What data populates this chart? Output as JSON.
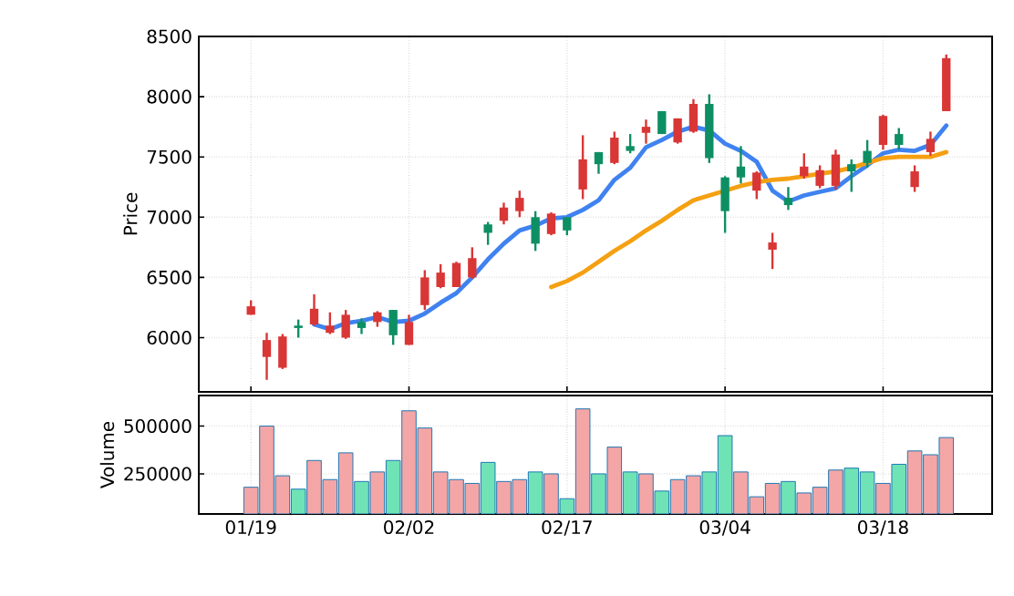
{
  "chart_data": [
    {
      "type": "candlestick",
      "ylabel": "Price",
      "categories": [
        null,
        null,
        null,
        null,
        null,
        null,
        null,
        null,
        null,
        null,
        null,
        null,
        null,
        null,
        null,
        null,
        null,
        null,
        null,
        null,
        null,
        null,
        null,
        null,
        null,
        null,
        null,
        null,
        null,
        null,
        null,
        null,
        null,
        null,
        null,
        null,
        null,
        null,
        null,
        null,
        null,
        null,
        null,
        null,
        null
      ],
      "ohlc": [
        [
          6190,
          6310,
          6190,
          6260
        ],
        [
          5840,
          6040,
          5650,
          5980
        ],
        [
          5750,
          6030,
          5740,
          6010
        ],
        [
          6100,
          6150,
          6000,
          6080
        ],
        [
          6110,
          6360,
          6100,
          6240
        ],
        [
          6040,
          6210,
          6030,
          6100
        ],
        [
          6000,
          6230,
          5990,
          6190
        ],
        [
          6130,
          6160,
          6030,
          6080
        ],
        [
          6130,
          6220,
          6090,
          6210
        ],
        [
          6230,
          6230,
          5940,
          6020
        ],
        [
          5940,
          6190,
          5940,
          6130
        ],
        [
          6270,
          6560,
          6230,
          6500
        ],
        [
          6420,
          6610,
          6410,
          6540
        ],
        [
          6420,
          6630,
          6420,
          6620
        ],
        [
          6500,
          6750,
          6490,
          6660
        ],
        [
          6940,
          6960,
          6770,
          6870
        ],
        [
          6970,
          7120,
          6940,
          7080
        ],
        [
          7050,
          7220,
          7000,
          7160
        ],
        [
          7000,
          7050,
          6720,
          6780
        ],
        [
          6860,
          7040,
          6850,
          7030
        ],
        [
          7000,
          7000,
          6850,
          6890
        ],
        [
          7230,
          7680,
          7150,
          7480
        ],
        [
          7540,
          7540,
          7360,
          7440
        ],
        [
          7450,
          7710,
          7440,
          7660
        ],
        [
          7590,
          7690,
          7530,
          7550
        ],
        [
          7700,
          7810,
          7610,
          7750
        ],
        [
          7880,
          7880,
          7690,
          7690
        ],
        [
          7620,
          7820,
          7610,
          7820
        ],
        [
          7710,
          7980,
          7700,
          7940
        ],
        [
          7940,
          8020,
          7450,
          7490
        ],
        [
          7330,
          7340,
          6870,
          7050
        ],
        [
          7420,
          7590,
          7280,
          7330
        ],
        [
          7220,
          7380,
          7150,
          7370
        ],
        [
          6730,
          6870,
          6570,
          6790
        ],
        [
          7160,
          7250,
          7060,
          7100
        ],
        [
          7340,
          7530,
          7320,
          7420
        ],
        [
          7260,
          7430,
          7240,
          7390
        ],
        [
          7260,
          7560,
          7230,
          7520
        ],
        [
          7440,
          7480,
          7210,
          7380
        ],
        [
          7550,
          7640,
          7410,
          7450
        ],
        [
          7600,
          7850,
          7560,
          7840
        ],
        [
          7690,
          7740,
          7560,
          7600
        ],
        [
          7250,
          7430,
          7210,
          7380
        ],
        [
          7540,
          7710,
          7510,
          7650
        ],
        [
          7880,
          8350,
          7880,
          8320
        ]
      ],
      "colors": [
        "#d93636",
        "#d93636",
        "#d93636",
        "#0e8f63",
        "#d93636",
        "#d93636",
        "#d93636",
        "#0e8f63",
        "#d93636",
        "#0e8f63",
        "#d93636",
        "#d93636",
        "#d93636",
        "#d93636",
        "#d93636",
        "#0e8f63",
        "#d93636",
        "#d93636",
        "#0e8f63",
        "#d93636",
        "#0e8f63",
        "#d93636",
        "#0e8f63",
        "#d93636",
        "#0e8f63",
        "#d93636",
        "#0e8f63",
        "#d93636",
        "#d93636",
        "#0e8f63",
        "#0e8f63",
        "#0e8f63",
        "#d93636",
        "#d93636",
        "#0e8f63",
        "#d93636",
        "#d93636",
        "#d93636",
        "#0e8f63",
        "#0e8f63",
        "#d93636",
        "#0e8f63",
        "#d93636",
        "#d93636",
        "#d93636"
      ],
      "series": [
        {
          "type": "line",
          "color": "#3f82f0",
          "values": [
            null,
            null,
            null,
            null,
            6110,
            6070,
            6120,
            6140,
            6170,
            6130,
            6140,
            6200,
            6290,
            6370,
            6500,
            6650,
            6780,
            6890,
            6930,
            6990,
            7000,
            7060,
            7140,
            7310,
            7410,
            7580,
            7640,
            7710,
            7750,
            7720,
            7610,
            7550,
            7460,
            7220,
            7130,
            7180,
            7210,
            7240,
            7340,
            7430,
            7530,
            7560,
            7550,
            7600,
            7760
          ]
        },
        {
          "type": "line",
          "color": "#f5a012",
          "values": [
            null,
            null,
            null,
            null,
            null,
            null,
            null,
            null,
            null,
            null,
            null,
            null,
            null,
            null,
            null,
            null,
            null,
            null,
            null,
            6420,
            6470,
            6540,
            6630,
            6720,
            6800,
            6890,
            6970,
            7060,
            7140,
            7180,
            7220,
            7260,
            7290,
            7310,
            7320,
            7340,
            7360,
            7380,
            7410,
            7450,
            7490,
            7500,
            7500,
            7500,
            7540
          ]
        }
      ],
      "ylim": [
        5550,
        8500
      ],
      "yticks": [
        6000,
        6500,
        7000,
        7500,
        8000,
        8500
      ],
      "grid": true,
      "tick_labels": "y"
    },
    {
      "type": "bar",
      "ylabel": "Volume",
      "categories": [
        "01/19",
        null,
        null,
        null,
        null,
        null,
        null,
        null,
        null,
        null,
        "02/02",
        null,
        null,
        null,
        null,
        null,
        null,
        null,
        null,
        null,
        "02/17",
        null,
        null,
        null,
        null,
        null,
        null,
        null,
        null,
        null,
        "03/04",
        null,
        null,
        null,
        null,
        null,
        null,
        null,
        null,
        null,
        "03/18",
        null,
        null,
        null,
        null
      ],
      "values": [
        180000,
        500000,
        240000,
        170000,
        320000,
        220000,
        360000,
        210000,
        260000,
        320000,
        580000,
        490000,
        260000,
        220000,
        200000,
        310000,
        210000,
        220000,
        260000,
        250000,
        120000,
        590000,
        250000,
        390000,
        260000,
        250000,
        160000,
        220000,
        240000,
        260000,
        450000,
        260000,
        130000,
        200000,
        210000,
        150000,
        180000,
        270000,
        280000,
        260000,
        200000,
        300000,
        370000,
        350000,
        440000
      ],
      "colors": [
        "#f4a6a6",
        "#f4a6a6",
        "#f4a6a6",
        "#6fe3b6",
        "#f4a6a6",
        "#f4a6a6",
        "#f4a6a6",
        "#6fe3b6",
        "#f4a6a6",
        "#6fe3b6",
        "#f4a6a6",
        "#f4a6a6",
        "#f4a6a6",
        "#f4a6a6",
        "#f4a6a6",
        "#6fe3b6",
        "#f4a6a6",
        "#f4a6a6",
        "#6fe3b6",
        "#f4a6a6",
        "#6fe3b6",
        "#f4a6a6",
        "#6fe3b6",
        "#f4a6a6",
        "#6fe3b6",
        "#f4a6a6",
        "#6fe3b6",
        "#f4a6a6",
        "#f4a6a6",
        "#6fe3b6",
        "#6fe3b6",
        "#f4a6a6",
        "#f4a6a6",
        "#f4a6a6",
        "#6fe3b6",
        "#f4a6a6",
        "#f4a6a6",
        "#f4a6a6",
        "#6fe3b6",
        "#6fe3b6",
        "#f4a6a6",
        "#6fe3b6",
        "#f4a6a6",
        "#f4a6a6",
        "#f4a6a6"
      ],
      "ylim": [
        40000,
        660000
      ],
      "yticks": [
        250000,
        500000
      ],
      "grid": true
    }
  ]
}
